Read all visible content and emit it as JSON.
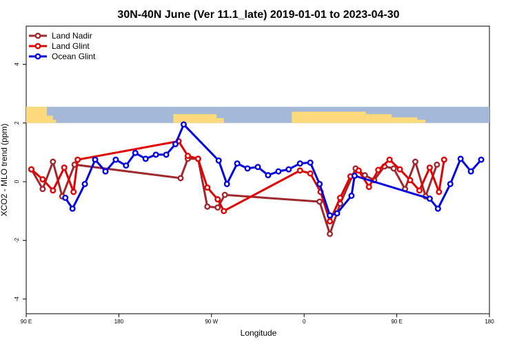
{
  "chart_data": {
    "type": "line",
    "title": "30N-40N June (Ver 11.1_late)   2019-01-01 to 2023-04-30",
    "xlabel": "Longitude",
    "ylabel": "XCO2 - MLO trend (ppm)",
    "x_ticks": [
      {
        "value": 90,
        "label": "90 E"
      },
      {
        "value": 180,
        "label": "180"
      },
      {
        "value": 270,
        "label": "90 W"
      },
      {
        "value": 360,
        "label": "0"
      },
      {
        "value": 450,
        "label": "90 E"
      },
      {
        "value": 540,
        "label": "180"
      }
    ],
    "y_ticks": [
      {
        "value": -4,
        "label": "-4"
      },
      {
        "value": -2,
        "label": "-2"
      },
      {
        "value": 0,
        "label": "0"
      },
      {
        "value": 2,
        "label": "2"
      },
      {
        "value": 4,
        "label": "4"
      }
    ],
    "xlim": [
      90,
      540
    ],
    "ylim": [
      -4.5,
      5.3
    ],
    "map_band": {
      "ymin": 2,
      "ymax": 2.55,
      "ocean_color": "#a4b8d8",
      "land_color": "#fdda7c"
    },
    "legend": {
      "position": "top-left"
    },
    "series": [
      {
        "name": "Land Nadir",
        "color": "#a0282c",
        "points": [
          [
            95,
            0.42
          ],
          [
            106,
            -0.25
          ],
          [
            116,
            0.68
          ],
          [
            125,
            -0.5
          ],
          [
            137,
            0.58
          ],
          [
            240,
            0.12
          ],
          [
            247,
            0.78
          ],
          [
            257,
            0.78
          ],
          [
            266,
            -0.85
          ],
          [
            276,
            -0.88
          ],
          [
            283,
            -0.45
          ],
          [
            375,
            -0.68
          ],
          [
            385,
            -1.78
          ],
          [
            395,
            -0.75
          ],
          [
            410,
            0.45
          ],
          [
            419,
            0.22
          ],
          [
            428,
            0.05
          ],
          [
            438,
            0.52
          ],
          [
            447,
            0.45
          ],
          [
            458,
            -0.25
          ],
          [
            468,
            0.68
          ],
          [
            478,
            -0.5
          ],
          [
            489,
            0.58
          ]
        ]
      },
      {
        "name": "Land Glint",
        "color": "#e20000",
        "points": [
          [
            95,
            0.42
          ],
          [
            106,
            0.08
          ],
          [
            116,
            -0.3
          ],
          [
            127,
            0.48
          ],
          [
            136,
            -0.35
          ],
          [
            140,
            0.75
          ],
          [
            238,
            1.38
          ],
          [
            247,
            0.88
          ],
          [
            257,
            0.78
          ],
          [
            266,
            -0.2
          ],
          [
            276,
            -0.6
          ],
          [
            282,
            -1.0
          ],
          [
            356,
            0.38
          ],
          [
            366,
            0.28
          ],
          [
            376,
            -0.35
          ],
          [
            385,
            -1.35
          ],
          [
            395,
            -0.55
          ],
          [
            405,
            0.18
          ],
          [
            413,
            0.38
          ],
          [
            423,
            -0.18
          ],
          [
            432,
            0.4
          ],
          [
            443,
            0.75
          ],
          [
            453,
            0.42
          ],
          [
            463,
            0.05
          ],
          [
            472,
            -0.3
          ],
          [
            482,
            0.48
          ],
          [
            491,
            -0.35
          ],
          [
            496,
            0.75
          ]
        ]
      },
      {
        "name": "Ocean Glint",
        "color": "#0000e0",
        "points": [
          [
            128,
            -0.55
          ],
          [
            135,
            -0.92
          ],
          [
            147,
            -0.08
          ],
          [
            157,
            0.75
          ],
          [
            167,
            0.35
          ],
          [
            177,
            0.75
          ],
          [
            187,
            0.55
          ],
          [
            196,
            0.98
          ],
          [
            206,
            0.78
          ],
          [
            216,
            0.92
          ],
          [
            226,
            0.92
          ],
          [
            235,
            1.28
          ],
          [
            243,
            1.95
          ],
          [
            277,
            0.72
          ],
          [
            285,
            -0.08
          ],
          [
            295,
            0.62
          ],
          [
            305,
            0.45
          ],
          [
            315,
            0.5
          ],
          [
            325,
            0.22
          ],
          [
            335,
            0.35
          ],
          [
            345,
            0.42
          ],
          [
            356,
            0.62
          ],
          [
            366,
            0.65
          ],
          [
            375,
            -0.08
          ],
          [
            385,
            -1.15
          ],
          [
            392,
            -1.08
          ],
          [
            406,
            -0.48
          ],
          [
            409,
            0.2
          ],
          [
            482,
            -0.58
          ],
          [
            490,
            -0.92
          ],
          [
            502,
            -0.08
          ],
          [
            512,
            0.78
          ],
          [
            522,
            0.35
          ],
          [
            532,
            0.75
          ]
        ]
      }
    ]
  }
}
